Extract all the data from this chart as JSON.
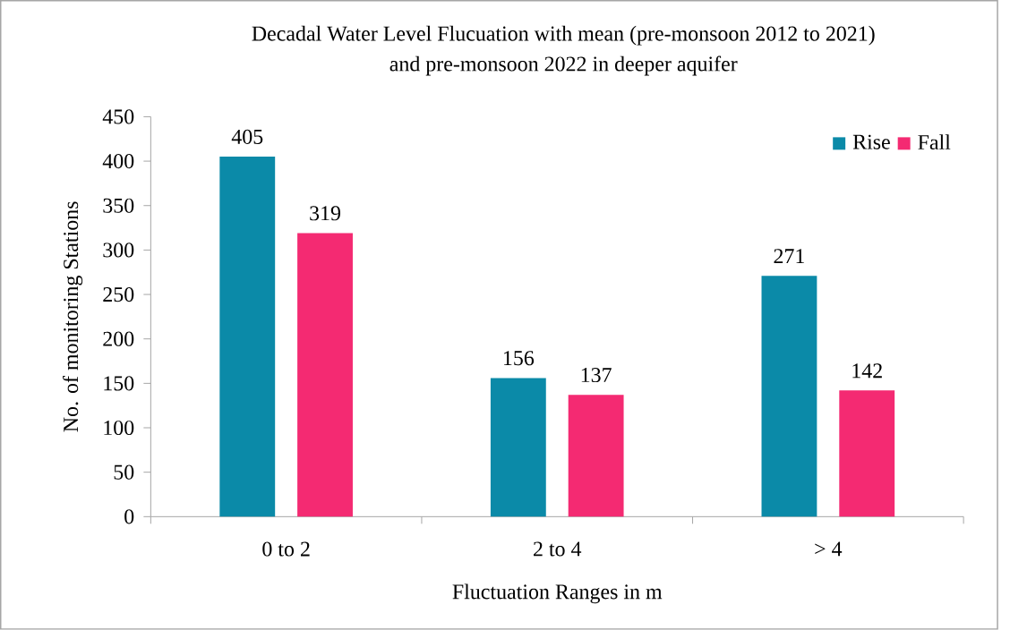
{
  "chart_data": {
    "type": "bar",
    "title": "Decadal Water Level Flucuation with mean (pre-monsoon 2012 to 2021)\nand pre-monsoon 2022 in deeper aquifer",
    "xlabel": "Fluctuation Ranges in m",
    "ylabel": "No. of monitoring Stations",
    "categories": [
      "0 to 2",
      "2 to 4",
      "> 4"
    ],
    "series": [
      {
        "name": "Rise",
        "color": "#0b8aa8",
        "values": [
          405,
          156,
          271
        ]
      },
      {
        "name": "Fall",
        "color": "#f42a72",
        "values": [
          319,
          137,
          142
        ]
      }
    ],
    "ylim": [
      0,
      450
    ],
    "yticks": [
      0,
      50,
      100,
      150,
      200,
      250,
      300,
      350,
      400,
      450
    ],
    "grid": false,
    "legend": "top right",
    "data_labels": true
  }
}
